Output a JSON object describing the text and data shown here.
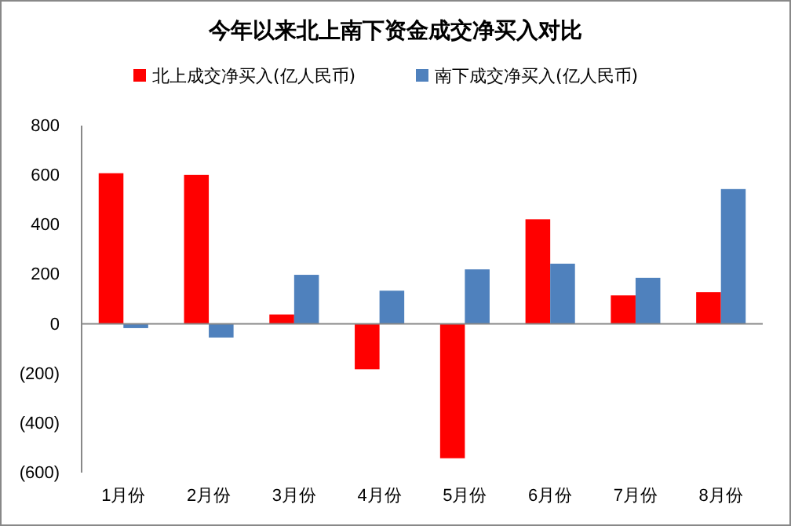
{
  "chart_data": {
    "type": "bar",
    "title": "今年以来北上南下资金成交净买入对比",
    "categories": [
      "1月份",
      "2月份",
      "3月份",
      "4月份",
      "5月份",
      "6月份",
      "7月份",
      "8月份"
    ],
    "series": [
      {
        "name": "北上成交净买入(亿人民币)",
        "color": "#ff0000",
        "values": [
          608,
          601,
          38,
          -183,
          -542,
          422,
          115,
          128
        ]
      },
      {
        "name": "南下成交净买入(亿人民币)",
        "color": "#4f81bd",
        "values": [
          -17,
          -55,
          198,
          134,
          220,
          243,
          186,
          544
        ]
      }
    ],
    "ylim": [
      -600,
      800
    ],
    "yticks": [
      {
        "value": -600,
        "label": "(600)"
      },
      {
        "value": -400,
        "label": "(400)"
      },
      {
        "value": -200,
        "label": "(200)"
      },
      0,
      200,
      400,
      600,
      800
    ],
    "legend": "top"
  }
}
